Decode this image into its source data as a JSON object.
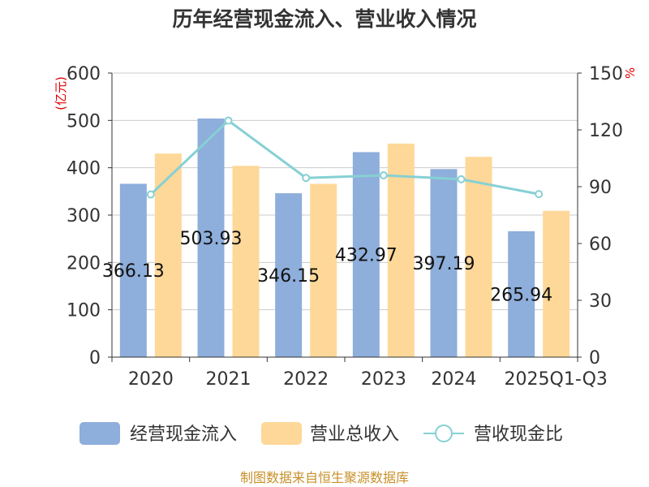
{
  "title": "历年经营现金流入、营业收入情况",
  "source": "制图数据来自恒生聚源数据库",
  "chart_data": {
    "type": "bar",
    "categories": [
      "2020",
      "2021",
      "2022",
      "2023",
      "2024",
      "2025Q1-Q3"
    ],
    "series": [
      {
        "name": "经营现金流入",
        "type": "bar",
        "axis": "left",
        "color": "#8eaedb",
        "values": [
          366.13,
          503.93,
          346.15,
          432.97,
          397.19,
          265.94
        ],
        "labels": [
          "366.13",
          "503.93",
          "346.15",
          "432.97",
          "397.19",
          "265.94"
        ]
      },
      {
        "name": "营业总收入",
        "type": "bar",
        "axis": "left",
        "color": "#fed898",
        "values": [
          430,
          404,
          366,
          451,
          423,
          309
        ]
      },
      {
        "name": "营收现金比",
        "type": "line",
        "axis": "right",
        "color": "#86d0d4",
        "values": [
          85.9,
          124.9,
          94.6,
          96.0,
          93.9,
          86.1
        ]
      }
    ],
    "y_left": {
      "unit": "(亿元)",
      "min": 0,
      "max": 600,
      "ticks": [
        "0",
        "100",
        "200",
        "300",
        "400",
        "500",
        "600"
      ]
    },
    "y_right": {
      "unit": "%",
      "min": 0,
      "max": 150,
      "ticks": [
        "0",
        "30",
        "60",
        "90",
        "120",
        "150"
      ]
    },
    "grid": true,
    "legend_position": "bottom"
  }
}
